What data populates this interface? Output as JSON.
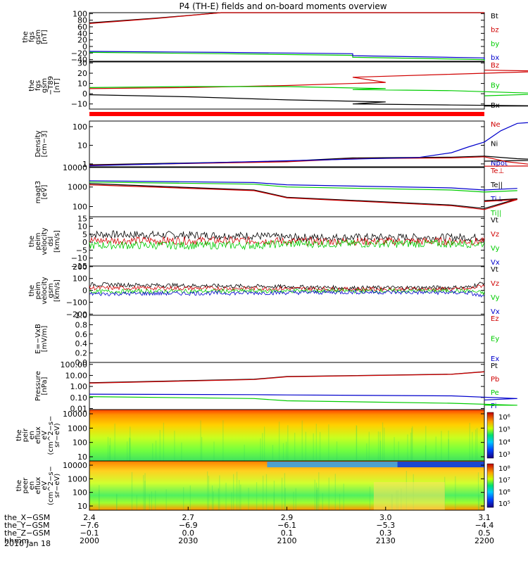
{
  "title": "P4 (TH-E) fields and on-board moments overview",
  "date_label": "2010 Jan 18",
  "chart_data": [
    {
      "type": "line",
      "panel": "fgs_gsm",
      "ylabel_lines": [
        "the",
        "fgs",
        "gsm",
        "[nT]"
      ],
      "ylim": [
        -45,
        103
      ],
      "yticks": [
        "100",
        "80",
        "60",
        "40",
        "20",
        "0",
        "−20",
        "−40"
      ],
      "ytick_values": [
        100,
        80,
        60,
        40,
        20,
        0,
        -20,
        -40
      ],
      "legend": [
        {
          "name": "Bt",
          "color": "#000000"
        },
        {
          "name": "bz",
          "color": "#d00000"
        },
        {
          "name": "by",
          "color": "#00cc00"
        },
        {
          "name": "bx",
          "color": "#0000cc"
        }
      ],
      "series": [
        {
          "name": "Bt",
          "color": "#000000",
          "x": [
            2000,
            2020,
            2040,
            2200
          ],
          "y": [
            72,
            86,
            103,
            103
          ]
        },
        {
          "name": "bz",
          "color": "#d00000",
          "x": [
            2000,
            2020,
            2040,
            2200
          ],
          "y": [
            70,
            85,
            103,
            103
          ]
        },
        {
          "name": "by",
          "color": "#00cc00",
          "x": [
            2000,
            2040,
            2080,
            2120,
            2160,
            2200
          ],
          "y": [
            -18,
            -22,
            -27,
            -33,
            -40,
            -44
          ]
        },
        {
          "name": "bx",
          "color": "#0000cc",
          "x": [
            2000,
            2040,
            2080,
            2120,
            2160,
            2200
          ],
          "y": [
            -15,
            -18,
            -22,
            -28,
            -35,
            -40
          ]
        }
      ]
    },
    {
      "type": "line",
      "panel": "fgs_gsm_t89",
      "ylabel_lines": [
        "the",
        "fgs",
        "gsm",
        "−T89",
        "[nT]"
      ],
      "ylim": [
        -15,
        31
      ],
      "yticks": [
        "30",
        "20",
        "10",
        "0",
        "−10"
      ],
      "ytick_values": [
        30,
        20,
        10,
        0,
        -10
      ],
      "legend": [
        {
          "name": "Bz",
          "color": "#d00000"
        },
        {
          "name": "By",
          "color": "#00cc00"
        },
        {
          "name": "Bx",
          "color": "#000000"
        }
      ],
      "series": [
        {
          "name": "Bz",
          "color": "#d00000",
          "x": [
            2000,
            2030,
            2060,
            2090,
            2120,
            2150,
            2180,
            2200
          ],
          "y": [
            5,
            6,
            8,
            11,
            16,
            19,
            22,
            23
          ]
        },
        {
          "name": "By",
          "color": "#00cc00",
          "x": [
            2000,
            2030,
            2060,
            2090,
            2120,
            2150,
            2180,
            2200
          ],
          "y": [
            6,
            7,
            7,
            5,
            4,
            3,
            0,
            -2
          ]
        },
        {
          "name": "Bx",
          "color": "#000000",
          "x": [
            2000,
            2030,
            2060,
            2090,
            2120,
            2150,
            2180,
            2200
          ],
          "y": [
            -1,
            -3,
            -6,
            -8,
            -10,
            -11,
            -12,
            -12
          ]
        }
      ]
    },
    {
      "type": "line",
      "panel": "density",
      "ylabel_lines": [
        "Density",
        "[cm−3]"
      ],
      "log": true,
      "ylim": [
        0.7,
        200
      ],
      "yticks": [
        "100",
        "10",
        "1"
      ],
      "ytick_values": [
        100,
        10,
        1
      ],
      "legend": [
        {
          "name": "Ne",
          "color": "#d00000"
        },
        {
          "name": "Ni",
          "color": "#000000"
        },
        {
          "name": "Npot",
          "color": "#0000cc"
        }
      ],
      "series": [
        {
          "name": "Ni",
          "color": "#000000",
          "x": [
            2000,
            2060,
            2120,
            2150,
            2160,
            2170,
            2180,
            2200
          ],
          "y": [
            0.9,
            1.4,
            2.1,
            2.3,
            2.6,
            1.9,
            1.6,
            1.4
          ]
        },
        {
          "name": "Ne",
          "color": "#d00000",
          "x": [
            2000,
            2060,
            2120,
            2150,
            2160,
            2167,
            2175,
            2190,
            2200
          ],
          "y": [
            0.85,
            1.3,
            1.9,
            2.1,
            2.4,
            1.3,
            0.9,
            0.8,
            0.75
          ]
        },
        {
          "name": "Npot",
          "color": "#0000cc",
          "x": [
            2000,
            2120,
            2140,
            2150,
            2155,
            2160,
            2165,
            2170,
            2180
          ],
          "y": [
            0.8,
            1.8,
            2.2,
            4,
            8,
            15,
            60,
            150,
            200
          ]
        }
      ]
    },
    {
      "type": "line",
      "panel": "temperature",
      "ylabel_lines": [
        "magt3",
        "[eV]"
      ],
      "log": true,
      "ylim": [
        30,
        10000
      ],
      "yticks": [
        "10000",
        "1000",
        "100"
      ],
      "ytick_values": [
        10000,
        1000,
        100
      ],
      "legend": [
        {
          "name": "Te⊥",
          "color": "#d00000"
        },
        {
          "name": "Te||",
          "color": "#000000"
        },
        {
          "name": "Ti⊥",
          "color": "#0000cc"
        },
        {
          "name": "Ti||",
          "color": "#00cc00"
        }
      ],
      "series": [
        {
          "name": "Ti⊥",
          "color": "#0000cc",
          "x": [
            2000,
            2050,
            2100,
            2150,
            2160,
            2170,
            2200
          ],
          "y": [
            2100,
            1700,
            1300,
            900,
            700,
            850,
            700
          ]
        },
        {
          "name": "Ti||",
          "color": "#00cc00",
          "x": [
            2000,
            2050,
            2100,
            2150,
            2160,
            2170,
            2200
          ],
          "y": [
            1800,
            1400,
            1000,
            700,
            550,
            650,
            550
          ]
        },
        {
          "name": "Te||",
          "color": "#000000",
          "x": [
            2000,
            2050,
            2100,
            2150,
            2160,
            2170,
            2200
          ],
          "y": [
            1500,
            700,
            300,
            120,
            80,
            250,
            200
          ]
        },
        {
          "name": "Te⊥",
          "color": "#d00000",
          "x": [
            2000,
            2050,
            2100,
            2150,
            2160,
            2170,
            2200
          ],
          "y": [
            1300,
            650,
            280,
            110,
            70,
            230,
            180
          ]
        }
      ]
    },
    {
      "type": "line",
      "panel": "velocity_dsl",
      "ylabel_lines": [
        "the",
        "peim",
        "velocity",
        "dsl",
        "[km/s]"
      ],
      "ylim": [
        -15,
        16
      ],
      "yticks": [
        "15",
        "10",
        "5",
        "0",
        "−5",
        "−10",
        "−15"
      ],
      "ytick_values": [
        15,
        10,
        5,
        0,
        -5,
        -10,
        -15
      ],
      "legend": [
        {
          "name": "Vt",
          "color": "#000000"
        },
        {
          "name": "Vz",
          "color": "#d00000"
        },
        {
          "name": "Vy",
          "color": "#00cc00"
        },
        {
          "name": "Vx",
          "color": "#0000cc"
        }
      ],
      "series": [
        {
          "name": "Vt",
          "color": "#000000",
          "x": [
            2000,
            2050,
            2100,
            2150,
            2200
          ],
          "y": [
            5,
            4,
            3,
            3,
            3
          ]
        },
        {
          "name": "Vz",
          "color": "#d00000",
          "x": [
            2000,
            2050,
            2100,
            2150,
            2200
          ],
          "y": [
            1,
            1,
            0.5,
            0.5,
            0.5
          ]
        },
        {
          "name": "Vy",
          "color": "#00cc00",
          "x": [
            2000,
            2050,
            2100,
            2150,
            2200
          ],
          "y": [
            -2,
            -2,
            -1,
            -1,
            -1
          ]
        }
      ]
    },
    {
      "type": "line",
      "panel": "velocity_gsm",
      "ylabel_lines": [
        "the",
        "peim",
        "velocity",
        "gsm",
        "[km/s]"
      ],
      "ylim": [
        -210,
        205
      ],
      "yticks": [
        "200",
        "100",
        "0",
        "−100",
        "−200"
      ],
      "ytick_values": [
        200,
        100,
        0,
        -100,
        -200
      ],
      "legend": [
        {
          "name": "Vt",
          "color": "#000000"
        },
        {
          "name": "Vz",
          "color": "#d00000"
        },
        {
          "name": "Vy",
          "color": "#00cc00"
        },
        {
          "name": "Vx",
          "color": "#0000cc"
        }
      ],
      "series": [
        {
          "name": "Vt",
          "color": "#000000",
          "x": [
            2000,
            2060,
            2120,
            2155,
            2165,
            2200
          ],
          "y": [
            50,
            30,
            20,
            25,
            110,
            130
          ]
        },
        {
          "name": "Vz",
          "color": "#d00000",
          "x": [
            2000,
            2060,
            2120,
            2155,
            2165,
            2200
          ],
          "y": [
            20,
            15,
            10,
            10,
            80,
            90
          ]
        },
        {
          "name": "Vy",
          "color": "#00cc00",
          "x": [
            2000,
            2060,
            2120,
            2155,
            2165,
            2200
          ],
          "y": [
            -10,
            -5,
            -5,
            -5,
            -40,
            -50
          ]
        },
        {
          "name": "Vx",
          "color": "#0000cc",
          "x": [
            2000,
            2060,
            2120,
            2155,
            2165,
            2200
          ],
          "y": [
            -30,
            -20,
            -15,
            -20,
            -90,
            -100
          ]
        }
      ]
    },
    {
      "type": "line",
      "panel": "efield",
      "ylabel_lines": [
        "E=−VxB",
        "[mV/m]"
      ],
      "ylim": [
        0,
        1.0
      ],
      "yticks": [
        "1.0",
        "0.8",
        "0.6",
        "0.4",
        "0.2",
        "0.0"
      ],
      "ytick_values": [
        1.0,
        0.8,
        0.6,
        0.4,
        0.2,
        0.0
      ],
      "legend": [
        {
          "name": "Ez",
          "color": "#d00000"
        },
        {
          "name": "Ey",
          "color": "#00cc00"
        },
        {
          "name": "Ex",
          "color": "#0000cc"
        }
      ],
      "series": []
    },
    {
      "type": "line",
      "panel": "pressure",
      "ylabel_lines": [
        "Pressure",
        "[nPa]"
      ],
      "log": true,
      "ylim": [
        0.008,
        150
      ],
      "yticks": [
        "100.00",
        "10.00",
        "1.00",
        "0.10",
        "0.01"
      ],
      "ytick_values": [
        100,
        10,
        1,
        0.1,
        0.01
      ],
      "legend": [
        {
          "name": "Pt",
          "color": "#000000"
        },
        {
          "name": "Pb",
          "color": "#d00000"
        },
        {
          "name": "Pe",
          "color": "#00cc00"
        },
        {
          "name": "Pi",
          "color": "#0000cc"
        }
      ],
      "series": [
        {
          "name": "Pt",
          "color": "#000000",
          "x": [
            2000,
            2050,
            2100,
            2150,
            2200
          ],
          "y": [
            2.2,
            4.5,
            8,
            13,
            22
          ]
        },
        {
          "name": "Pb",
          "color": "#d00000",
          "x": [
            2000,
            2050,
            2100,
            2150,
            2200
          ],
          "y": [
            2.0,
            4.2,
            7.5,
            12.5,
            21
          ]
        },
        {
          "name": "Pi",
          "color": "#0000cc",
          "x": [
            2000,
            2050,
            2100,
            2150,
            2170,
            2200
          ],
          "y": [
            0.2,
            0.18,
            0.17,
            0.14,
            0.08,
            0.06
          ]
        },
        {
          "name": "Pe",
          "color": "#00cc00",
          "x": [
            2000,
            2050,
            2100,
            2150,
            2170,
            2200
          ],
          "y": [
            0.12,
            0.08,
            0.05,
            0.03,
            0.02,
            0.02
          ]
        }
      ]
    },
    {
      "type": "heatmap",
      "panel": "ion_spectrogram",
      "ylabel_lines": [
        "the",
        "peir",
        "en",
        "eflux",
        "eV",
        "(cm^2−s−",
        "sr−eV)"
      ],
      "yticks": [
        "10000",
        "1000",
        "100",
        "10"
      ],
      "colorbar_ticks": [
        "10⁶",
        "10⁵",
        "10⁴",
        "10³"
      ]
    },
    {
      "type": "heatmap",
      "panel": "electron_spectrogram",
      "ylabel_lines": [
        "the",
        "peer",
        "en",
        "eflux",
        "eV",
        "(cm^2−s−",
        "sr−eV)"
      ],
      "yticks": [
        "10000",
        "1000",
        "100",
        "10"
      ],
      "colorbar_ticks": [
        "10⁸",
        "10⁷",
        "10⁶",
        "10⁵"
      ]
    }
  ],
  "x_axis": {
    "row_labels": [
      "the_X−GSM",
      "the_Y−GSM",
      "the_Z−GSM",
      "hhmm"
    ],
    "columns": [
      [
        "2.4",
        "−7.6",
        "−0.1",
        "2000"
      ],
      [
        "2.7",
        "−6.9",
        "0.0",
        "2030"
      ],
      [
        "2.9",
        "−6.1",
        "0.1",
        "2100"
      ],
      [
        "3.0",
        "−5.3",
        "0.3",
        "2130"
      ],
      [
        "3.1",
        "−4.4",
        "0.5",
        "2200"
      ]
    ]
  }
}
